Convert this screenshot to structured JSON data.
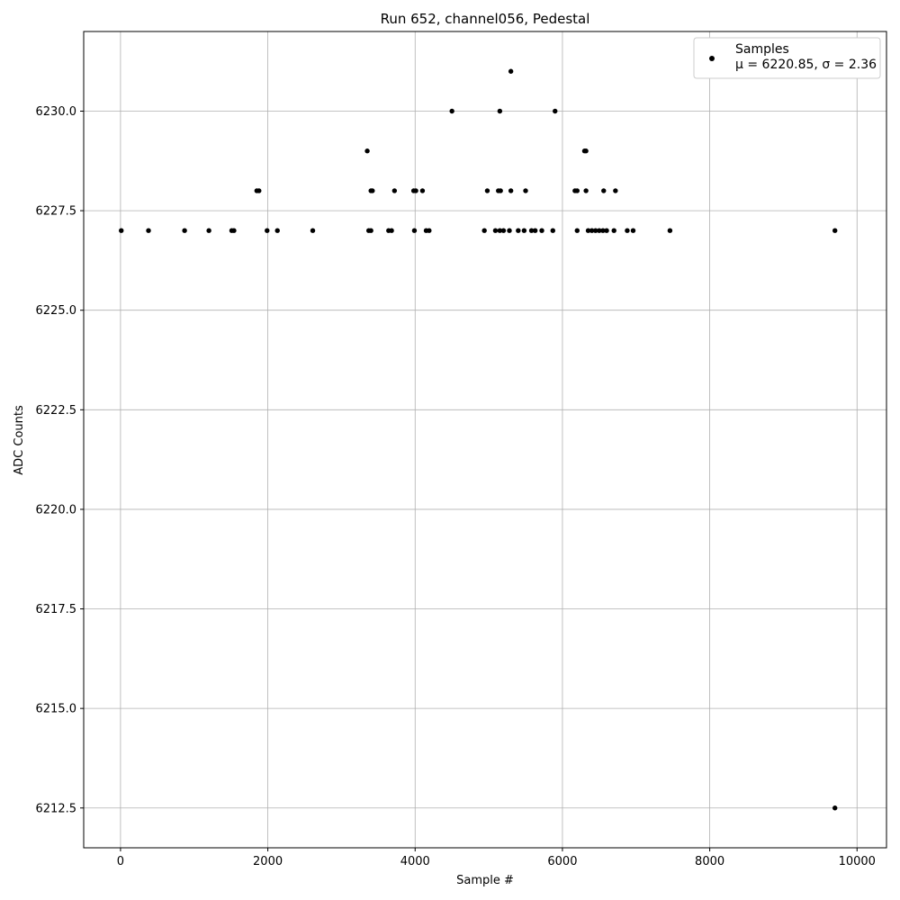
{
  "chart_data": {
    "type": "scatter",
    "title": "Run 652, channel056, Pedestal",
    "xlabel": "Sample #",
    "ylabel": "ADC Counts",
    "xlim": [
      -500,
      10400
    ],
    "ylim": [
      6211.5,
      6232.0
    ],
    "xticks": [
      0,
      2000,
      4000,
      6000,
      8000,
      10000
    ],
    "xtick_labels": [
      "0",
      "2000",
      "4000",
      "6000",
      "8000",
      "10000"
    ],
    "yticks": [
      6212.5,
      6215.0,
      6217.5,
      6220.0,
      6222.5,
      6225.0,
      6227.5,
      6230.0
    ],
    "ytick_labels": [
      "6212.5",
      "6215.0",
      "6217.5",
      "6220.0",
      "6222.5",
      "6225.0",
      "6227.5",
      "6230.0"
    ],
    "grid": true,
    "legend": {
      "placement": "upper-right",
      "label": "Samples",
      "stats": "μ = 6220.85, σ = 2.36"
    },
    "marker_color": "#000000",
    "series": [
      {
        "name": "Samples",
        "points": [
          [
            5300,
            6231
          ],
          [
            4500,
            6230
          ],
          [
            5150,
            6230
          ],
          [
            5900,
            6230
          ],
          [
            3350,
            6229
          ],
          [
            6300,
            6229
          ],
          [
            6320,
            6229
          ],
          [
            1850,
            6228
          ],
          [
            1880,
            6228
          ],
          [
            3400,
            6228
          ],
          [
            3420,
            6228
          ],
          [
            3720,
            6228
          ],
          [
            3980,
            6228
          ],
          [
            4010,
            6228
          ],
          [
            4100,
            6228
          ],
          [
            4980,
            6228
          ],
          [
            5130,
            6228
          ],
          [
            5160,
            6228
          ],
          [
            5300,
            6228
          ],
          [
            5500,
            6228
          ],
          [
            6170,
            6228
          ],
          [
            6200,
            6228
          ],
          [
            6320,
            6228
          ],
          [
            6560,
            6228
          ],
          [
            6720,
            6228
          ],
          [
            10,
            6227
          ],
          [
            380,
            6227
          ],
          [
            870,
            6227
          ],
          [
            1200,
            6227
          ],
          [
            1510,
            6227
          ],
          [
            1540,
            6227
          ],
          [
            1990,
            6227
          ],
          [
            2130,
            6227
          ],
          [
            2610,
            6227
          ],
          [
            3370,
            6227
          ],
          [
            3400,
            6227
          ],
          [
            3640,
            6227
          ],
          [
            3680,
            6227
          ],
          [
            3990,
            6227
          ],
          [
            4150,
            6227
          ],
          [
            4190,
            6227
          ],
          [
            4940,
            6227
          ],
          [
            5090,
            6227
          ],
          [
            5150,
            6227
          ],
          [
            5200,
            6227
          ],
          [
            5280,
            6227
          ],
          [
            5400,
            6227
          ],
          [
            5480,
            6227
          ],
          [
            5580,
            6227
          ],
          [
            5630,
            6227
          ],
          [
            5720,
            6227
          ],
          [
            5870,
            6227
          ],
          [
            6200,
            6227
          ],
          [
            6350,
            6227
          ],
          [
            6400,
            6227
          ],
          [
            6450,
            6227
          ],
          [
            6500,
            6227
          ],
          [
            6550,
            6227
          ],
          [
            6600,
            6227
          ],
          [
            6700,
            6227
          ],
          [
            6880,
            6227
          ],
          [
            6960,
            6227
          ],
          [
            7460,
            6227
          ],
          [
            9700,
            6227
          ],
          [
            9700,
            6212.5
          ]
        ]
      }
    ]
  }
}
